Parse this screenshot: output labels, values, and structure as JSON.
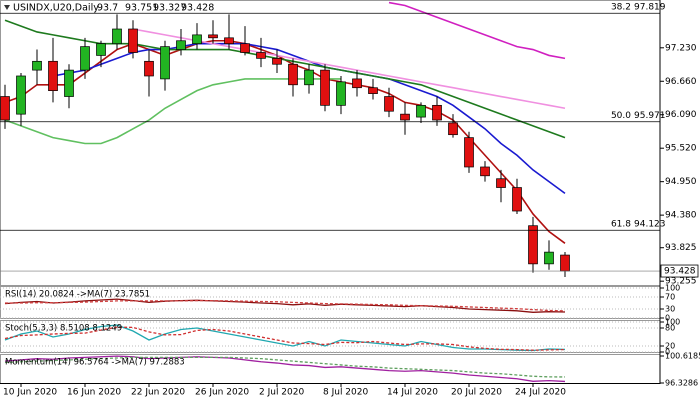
{
  "chart_data": [
    {
      "type": "candlestick",
      "title": "USINDX,U20,Daily",
      "categories": [
        null,
        "10 Jun 2020",
        null,
        null,
        null,
        "16 Jun 2020",
        null,
        null,
        null,
        "22 Jun 2020",
        null,
        null,
        null,
        "26 Jun 2020",
        null,
        null,
        null,
        "2 Jul 2020",
        null,
        null,
        null,
        "8 Jul 2020",
        null,
        null,
        null,
        "14 Jul 2020",
        null,
        null,
        null,
        "20 Jul 2020",
        null,
        null,
        null,
        "24 Jul 2020",
        null,
        null
      ],
      "open": [
        96.4,
        96.1,
        96.85,
        97.0,
        96.4,
        96.85,
        97.1,
        97.3,
        97.55,
        97.0,
        96.7,
        97.2,
        97.3,
        97.45,
        97.4,
        97.3,
        97.15,
        97.05,
        96.95,
        96.6,
        96.85,
        96.25,
        96.7,
        96.55,
        96.4,
        96.1,
        96.05,
        96.25,
        95.95,
        95.7,
        95.2,
        95.0,
        94.85,
        94.2,
        93.55,
        93.7
      ],
      "high": [
        96.6,
        96.8,
        97.2,
        97.4,
        96.95,
        97.4,
        97.35,
        97.8,
        97.7,
        97.2,
        97.35,
        97.55,
        97.65,
        97.7,
        97.8,
        97.6,
        97.4,
        97.2,
        97.05,
        96.95,
        96.95,
        96.75,
        96.85,
        96.7,
        96.55,
        96.3,
        96.3,
        96.4,
        96.1,
        95.8,
        95.3,
        95.15,
        95.0,
        94.35,
        93.95,
        93.751
      ],
      "low": [
        95.85,
        95.9,
        96.6,
        96.3,
        96.2,
        96.7,
        96.9,
        97.2,
        97.05,
        96.4,
        96.5,
        97.1,
        97.2,
        97.3,
        97.2,
        97.1,
        96.9,
        96.8,
        96.4,
        96.45,
        96.15,
        96.1,
        96.4,
        96.35,
        96.05,
        95.75,
        95.95,
        95.9,
        95.7,
        95.1,
        94.95,
        94.6,
        94.4,
        93.4,
        93.45,
        93.327
      ],
      "close": [
        96.0,
        96.75,
        97.0,
        96.5,
        96.85,
        97.25,
        97.3,
        97.55,
        97.15,
        96.75,
        97.25,
        97.35,
        97.45,
        97.4,
        97.3,
        97.15,
        97.05,
        96.95,
        96.6,
        96.85,
        96.25,
        96.65,
        96.55,
        96.45,
        96.15,
        96.0,
        96.25,
        96.0,
        95.75,
        95.2,
        95.05,
        94.85,
        94.45,
        93.55,
        93.75,
        93.428
      ],
      "up_color": "#22b422",
      "down_color": "#e01010",
      "series": [
        {
          "color": "#b01010",
          "values": [
            96.3,
            96.4,
            96.6,
            96.6,
            96.6,
            96.8,
            97.0,
            97.2,
            97.3,
            97.2,
            97.1,
            97.2,
            97.3,
            97.35,
            97.35,
            97.3,
            97.2,
            97.1,
            96.95,
            96.85,
            96.7,
            96.65,
            96.6,
            96.55,
            96.45,
            96.3,
            96.25,
            96.15,
            96.0,
            95.7,
            95.4,
            95.1,
            94.8,
            94.4,
            94.1,
            93.9
          ]
        },
        {
          "color": "#1a1ad0",
          "values": [
            null,
            null,
            null,
            96.75,
            96.8,
            96.85,
            96.95,
            97.05,
            97.15,
            97.2,
            97.2,
            97.25,
            97.3,
            97.3,
            97.3,
            97.3,
            97.25,
            97.2,
            97.1,
            97.0,
            96.9,
            96.85,
            96.8,
            96.75,
            96.7,
            96.6,
            96.5,
            96.4,
            96.25,
            96.05,
            95.85,
            95.6,
            95.4,
            95.15,
            94.95,
            94.75
          ]
        },
        {
          "color": "#1e7a1e",
          "values": [
            97.7,
            97.6,
            97.5,
            97.45,
            97.4,
            97.35,
            97.3,
            97.3,
            97.3,
            97.25,
            97.2,
            97.2,
            97.2,
            97.2,
            97.2,
            97.15,
            97.1,
            97.05,
            97.0,
            96.95,
            96.9,
            96.85,
            96.8,
            96.75,
            96.7,
            96.65,
            96.6,
            96.5,
            96.4,
            96.3,
            96.2,
            96.1,
            96.0,
            95.9,
            95.8,
            95.7
          ]
        },
        {
          "color": "#d020c0",
          "values": [
            null,
            null,
            null,
            null,
            null,
            null,
            null,
            null,
            null,
            null,
            null,
            null,
            null,
            null,
            null,
            null,
            null,
            null,
            null,
            null,
            null,
            null,
            null,
            null,
            98.0,
            97.95,
            97.85,
            97.75,
            97.65,
            97.55,
            97.45,
            97.35,
            97.25,
            97.2,
            97.1,
            97.05
          ]
        },
        {
          "color": "#f090e0",
          "values": [
            null,
            null,
            null,
            null,
            null,
            null,
            null,
            null,
            97.55,
            97.5,
            97.45,
            97.4,
            97.35,
            97.3,
            97.25,
            97.2,
            97.15,
            97.1,
            97.05,
            97.0,
            96.95,
            96.9,
            96.85,
            96.8,
            96.75,
            96.7,
            96.65,
            96.6,
            96.55,
            96.5,
            96.45,
            96.4,
            96.35,
            96.3,
            96.25,
            96.2
          ]
        },
        {
          "color": "#60c060",
          "values": [
            96.0,
            95.9,
            95.8,
            95.7,
            95.65,
            95.6,
            95.6,
            95.7,
            95.85,
            96.0,
            96.2,
            96.35,
            96.5,
            96.6,
            96.65,
            96.7,
            96.7,
            96.7,
            96.7,
            96.7,
            96.7,
            96.7,
            null,
            null,
            null,
            null,
            null,
            null,
            null,
            null,
            null,
            null,
            null,
            null,
            null,
            null
          ]
        }
      ],
      "annotations": [
        {
          "label": "38.2",
          "value": 97.819
        },
        {
          "label": "50.0",
          "value": 95.971
        },
        {
          "label": "61.8",
          "value": 94.123
        }
      ],
      "ylim": [
        93.19,
        98.01
      ],
      "yticks": [
        {
          "value": 97.23,
          "label": "97.230"
        },
        {
          "value": 96.66,
          "label": "96.660"
        },
        {
          "value": 96.09,
          "label": "96.090"
        },
        {
          "value": 95.52,
          "label": "95.520"
        },
        {
          "value": 94.95,
          "label": "94.950"
        },
        {
          "value": 94.38,
          "label": "94.380"
        },
        93.825,
        93.255
      ]
    },
    {
      "type": "line",
      "title": "RSI(14) 20.0824 ->MA(7) 23.7851",
      "grid": true,
      "series": [
        {
          "color": "#8b1010",
          "values": [
            48,
            52,
            55,
            50,
            53,
            57,
            60,
            63,
            58,
            52,
            56,
            58,
            59,
            57,
            55,
            53,
            50,
            48,
            44,
            47,
            42,
            46,
            44,
            42,
            40,
            38,
            41,
            38,
            35,
            30,
            28,
            26,
            24,
            19,
            21,
            20.0824
          ]
        },
        {
          "color": "#d04040",
          "dash": true,
          "values": [
            50,
            50,
            51,
            51,
            52,
            53,
            55,
            57,
            57,
            57,
            57,
            57,
            58,
            58,
            57,
            56,
            55,
            54,
            52,
            50,
            48,
            47,
            46,
            45,
            44,
            42,
            41,
            40,
            39,
            37,
            35,
            33,
            31,
            28,
            25,
            23.7851
          ]
        }
      ],
      "ylim": [
        0,
        100
      ],
      "yticks": [
        0,
        30,
        70,
        100
      ]
    },
    {
      "type": "line",
      "title": "Stoch(5,3,3) 8.5108 8.1249",
      "grid": true,
      "series": [
        {
          "color": "#20a8b0",
          "values": [
            40,
            60,
            70,
            50,
            60,
            75,
            85,
            90,
            70,
            40,
            60,
            75,
            80,
            70,
            60,
            50,
            40,
            30,
            20,
            35,
            20,
            40,
            35,
            30,
            25,
            20,
            35,
            25,
            15,
            10,
            10,
            8,
            6,
            5,
            10,
            8.5108
          ]
        },
        {
          "color": "#d03030",
          "dash": true,
          "values": [
            45,
            55,
            57,
            60,
            62,
            63,
            73,
            83,
            82,
            67,
            57,
            58,
            72,
            75,
            70,
            60,
            50,
            40,
            30,
            28,
            25,
            32,
            31,
            35,
            30,
            25,
            27,
            27,
            25,
            17,
            12,
            9,
            8,
            6,
            7,
            8.1249
          ]
        }
      ],
      "ylim": [
        0,
        100
      ],
      "yticks": [
        0,
        20,
        80,
        100
      ]
    },
    {
      "type": "line",
      "title": "Momentum(14) 96.5764 ->MA(7) 97.2883",
      "grid": false,
      "series": [
        {
          "color": "#a020a0",
          "values": [
            99.8,
            100.0,
            100.2,
            100.1,
            100.3,
            100.4,
            100.5,
            100.6,
            100.5,
            100.2,
            100.3,
            100.4,
            100.5,
            100.4,
            100.3,
            100.0,
            99.7,
            99.5,
            99.2,
            99.1,
            98.8,
            98.9,
            98.7,
            98.5,
            98.3,
            98.2,
            98.3,
            98.1,
            97.9,
            97.6,
            97.4,
            97.2,
            97.0,
            96.6,
            96.7,
            96.5764
          ]
        },
        {
          "color": "#60a060",
          "dash": true,
          "values": [
            99.6,
            99.7,
            99.8,
            99.9,
            100.0,
            100.1,
            100.2,
            100.3,
            100.4,
            100.4,
            100.4,
            100.4,
            100.4,
            100.4,
            100.4,
            100.3,
            100.2,
            100.0,
            99.8,
            99.6,
            99.4,
            99.2,
            99.0,
            98.9,
            98.7,
            98.6,
            98.5,
            98.4,
            98.3,
            98.1,
            97.9,
            97.8,
            97.6,
            97.4,
            97.3,
            97.2883
          ]
        }
      ],
      "ylim": [
        96.3286,
        100.6185
      ],
      "yticks": [
        96.3286,
        100.6185
      ]
    }
  ]
}
